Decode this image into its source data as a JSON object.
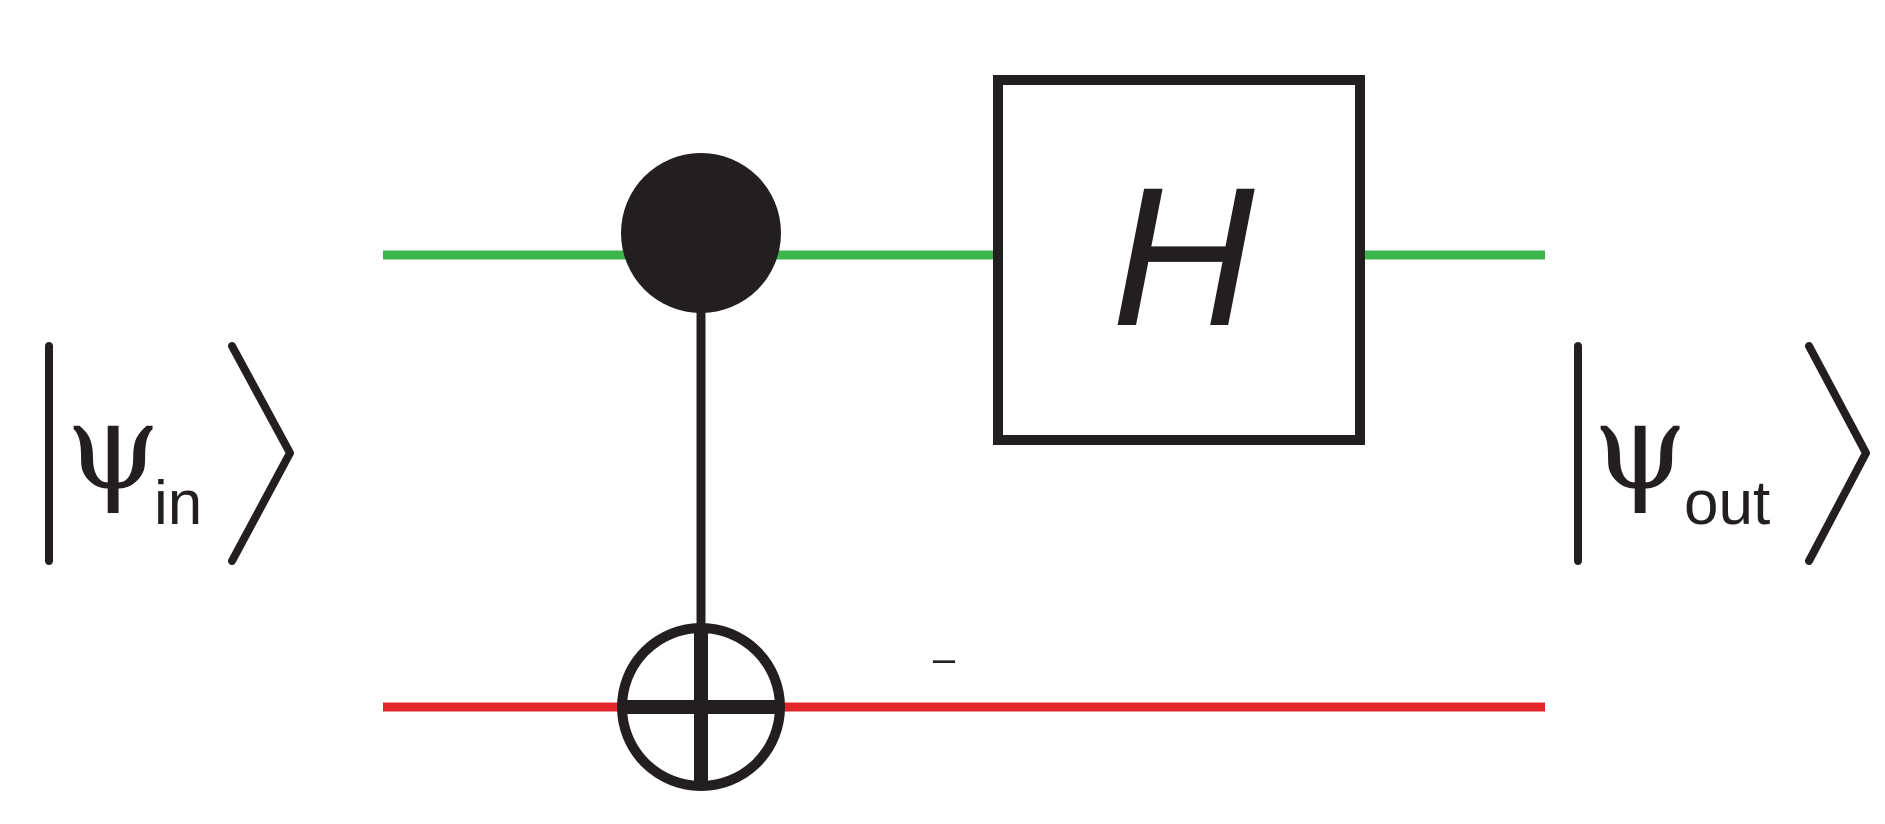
{
  "diagram": {
    "input_state": {
      "symbol": "ψ",
      "subscript": "in"
    },
    "output_state": {
      "symbol": "ψ",
      "subscript": "out"
    },
    "gate_label": "H",
    "wire_colors": {
      "top": "#3cb54a",
      "bottom": "#e3262a"
    },
    "ink_color": "#231f20",
    "bottom_wire_mark": "–"
  }
}
